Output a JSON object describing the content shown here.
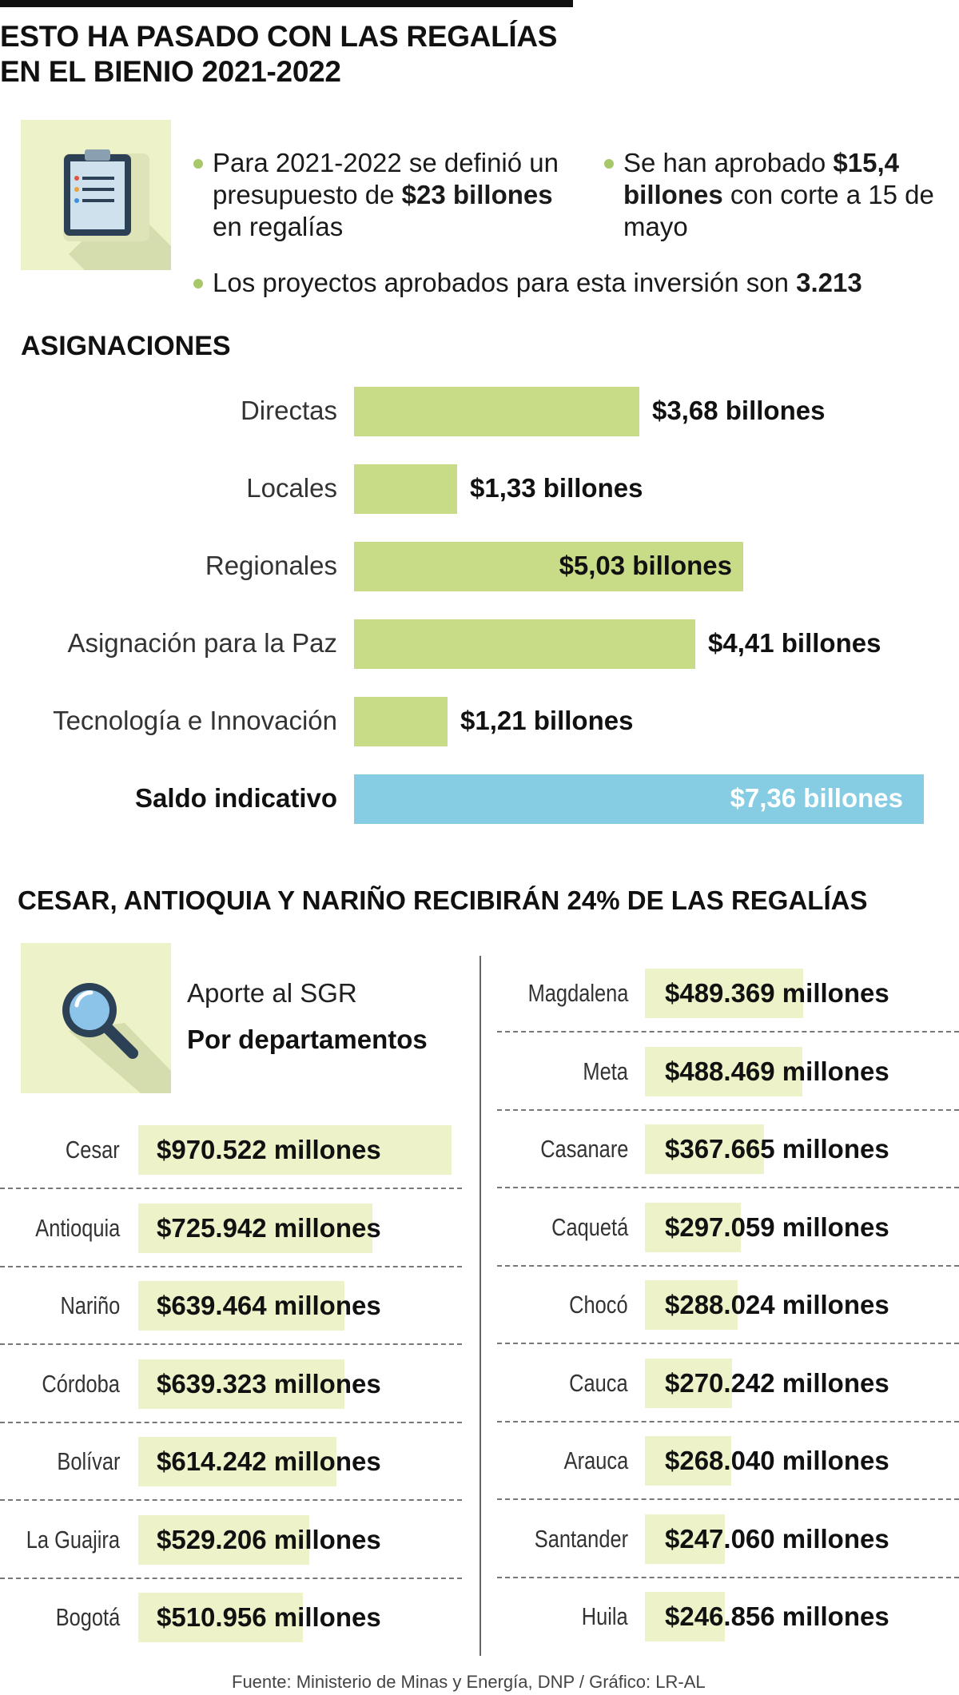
{
  "title": {
    "line1": "ESTO HA PASADO CON LAS REGALÍAS",
    "line2": "EN EL BIENIO 2021-2022"
  },
  "summary": {
    "b1_pre": "Para 2021-2022 se definió un presupuesto de ",
    "b1_bold": "$23 billones",
    "b1_post": " en regalías",
    "b2_pre": "Se han aprobado ",
    "b2_bold": "$15,4 billones",
    "b2_post": " con corte a 15 de mayo",
    "b3_pre": "Los proyectos aprobados para esta inversión son ",
    "b3_bold": "3.213"
  },
  "colors": {
    "bar_green": "#c8dc88",
    "bar_blue": "#86cde3",
    "dept_bar": "#edf2c8",
    "bullet": "#a7c86a",
    "icon_box": "#edf2c8"
  },
  "icons": [
    "clipboard-icon",
    "magnifier-icon"
  ],
  "chart_data": [
    {
      "type": "bar",
      "title": "ASIGNACIONES",
      "orientation": "horizontal",
      "categories": [
        "Directas",
        "Locales",
        "Regionales",
        "Asignación para la Paz",
        "Tecnología e Innovación",
        "Saldo indicativo"
      ],
      "values": [
        3.68,
        1.33,
        5.03,
        4.41,
        1.21,
        7.36
      ],
      "labels": [
        "$3,68 billones",
        "$1,33 billones",
        "$5,03 billones",
        "$4,41 billones",
        "$1,21 billones",
        "$7,36 billones"
      ],
      "unit": "billones",
      "highlight": "Saldo indicativo"
    },
    {
      "type": "bar",
      "title": "CESAR, ANTIOQUIA Y NARIÑO RECIBIRÁN 24% DE LAS REGALÍAS",
      "subtitle_line1": "Aporte al SGR",
      "subtitle_line2": "Por departamentos",
      "orientation": "horizontal",
      "categories": [
        "Cesar",
        "Antioquia",
        "Nariño",
        "Córdoba",
        "Bolívar",
        "La Guajira",
        "Bogotá",
        "Magdalena",
        "Meta",
        "Casanare",
        "Caquetá",
        "Chocó",
        "Cauca",
        "Arauca",
        "Santander",
        "Huila"
      ],
      "values": [
        970522,
        725942,
        639464,
        639323,
        614242,
        529206,
        510956,
        489369,
        488469,
        367665,
        297059,
        288024,
        270242,
        268040,
        247060,
        246856
      ],
      "labels": [
        "$970.522 millones",
        "$725.942 millones",
        "$639.464 millones",
        "$639.323 millones",
        "$614.242 millones",
        "$529.206 millones",
        "$510.956 millones",
        "$489.369 millones",
        "$488.469 millones",
        "$367.665 millones",
        "$297.059 millones",
        "$288.024 millones",
        "$270.242 millones",
        "$268.040 millones",
        "$247.060 millones",
        "$246.856 millones"
      ],
      "unit": "millones"
    }
  ],
  "source": "Fuente: Ministerio de Minas y Energía, DNP / Gráfico: LR-AL"
}
